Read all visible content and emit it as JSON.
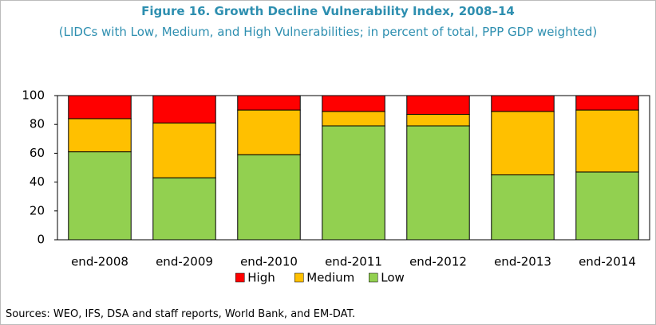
{
  "chart_data": {
    "type": "stacked_bar",
    "title": "Figure 16. Growth Decline Vulnerability Index, 2008–14",
    "subtitle": "(LIDCs with Low, Medium, and High Vulnerabilities; in percent of total, PPP GDP weighted)",
    "categories": [
      "end-2008",
      "end-2009",
      "end-2010",
      "end-2011",
      "end-2012",
      "end-2013",
      "end-2014"
    ],
    "series": [
      {
        "name": "High",
        "color": "#ff0000",
        "values": [
          16,
          19,
          10,
          11,
          13,
          11,
          10
        ]
      },
      {
        "name": "Medium",
        "color": "#ffc000",
        "values": [
          23,
          38,
          31,
          10,
          8,
          44,
          43
        ]
      },
      {
        "name": "Low",
        "color": "#92d050",
        "values": [
          61,
          43,
          59,
          79,
          79,
          45,
          47
        ]
      }
    ],
    "ylim": [
      0,
      100
    ],
    "yticks": [
      0,
      20,
      40,
      60,
      80,
      100
    ],
    "grid": false,
    "legend": "bottom",
    "source": "Sources: WEO, IFS, DSA and staff reports, World Bank, and EM-DAT."
  }
}
